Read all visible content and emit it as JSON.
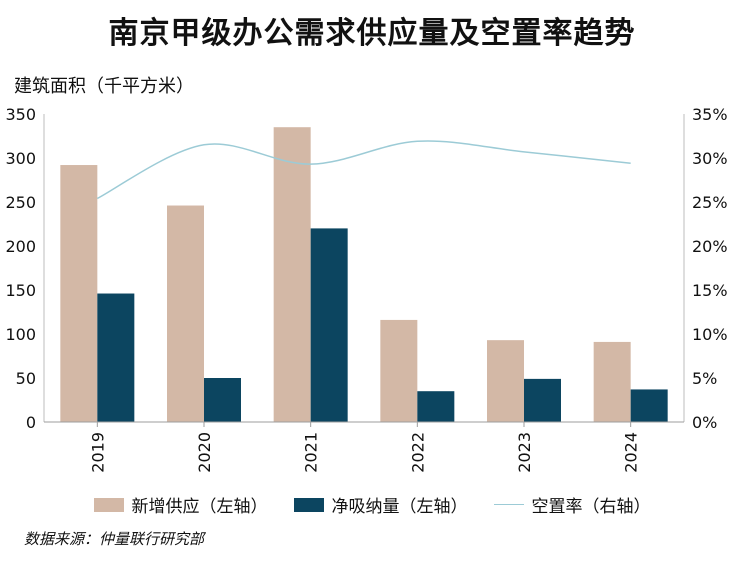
{
  "chart_data": {
    "type": "bar",
    "title": "南京甲级办公需求供应量及空置率趋势",
    "ylabel": "建筑面积（千平方米）",
    "categories": [
      "2019",
      "2020",
      "2021",
      "2022",
      "2023",
      "2024"
    ],
    "ylim": [
      0,
      350
    ],
    "yticks": [
      "0",
      "50",
      "100",
      "150",
      "200",
      "250",
      "300",
      "350"
    ],
    "y2lim": [
      0,
      35
    ],
    "y2ticks": [
      "0%",
      "5%",
      "10%",
      "15%",
      "20%",
      "25%",
      "30%",
      "35%"
    ],
    "series": [
      {
        "name": "新增供应（左轴）",
        "type": "bar",
        "axis": "left",
        "color": "#d3b8a6",
        "values": [
          292,
          246,
          335,
          116,
          93,
          91
        ]
      },
      {
        "name": "净吸纳量（左轴）",
        "type": "bar",
        "axis": "left",
        "color": "#0c4560",
        "values": [
          146,
          50,
          220,
          35,
          49,
          37
        ]
      },
      {
        "name": "空置率（右轴）",
        "type": "line",
        "axis": "right",
        "color": "#9ccbd6",
        "values": [
          25.4,
          31.5,
          29.3,
          31.9,
          30.7,
          29.4
        ]
      }
    ],
    "grid": false,
    "legend": "bottom"
  },
  "source": "数据来源：仲量联行研究部"
}
